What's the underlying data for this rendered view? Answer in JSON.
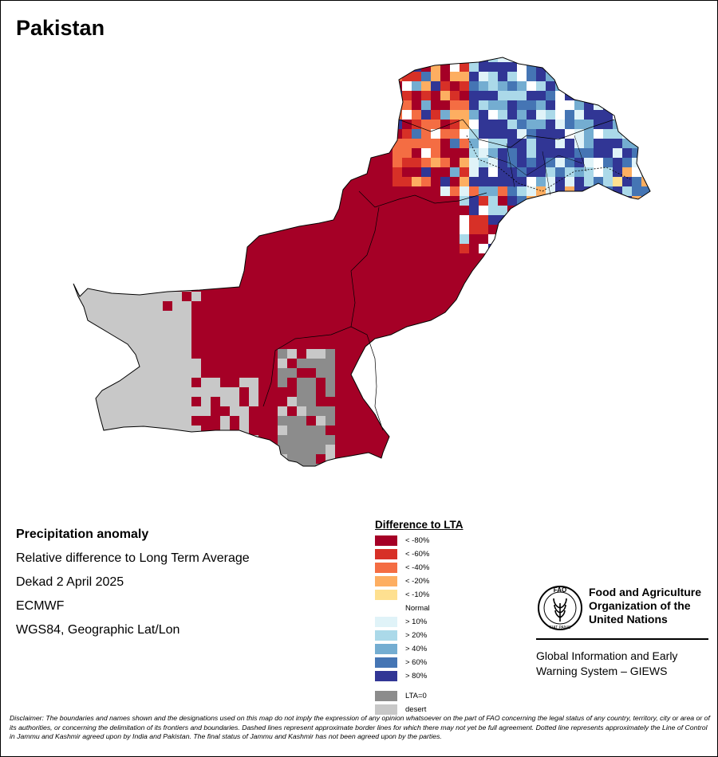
{
  "title": "Pakistan",
  "info": {
    "heading": "Precipitation anomaly",
    "line1": "Relative difference to Long Term Average",
    "line2": "Dekad 2 April 2025",
    "line3": "ECMWF",
    "line4": "WGS84, Geographic Lat/Lon"
  },
  "legend": {
    "title": "Difference to LTA",
    "classes": [
      {
        "label": "< -80%",
        "color": "#a50026"
      },
      {
        "label": "< -60%",
        "color": "#d73027"
      },
      {
        "label": "< -40%",
        "color": "#f46d43"
      },
      {
        "label": "< -20%",
        "color": "#fdae61"
      },
      {
        "label": "< -10%",
        "color": "#fee090"
      },
      {
        "label": "Normal",
        "color": "#ffffff"
      },
      {
        "label": "> 10%",
        "color": "#e0f3f8"
      },
      {
        "label": "> 20%",
        "color": "#abd9e9"
      },
      {
        "label": "> 40%",
        "color": "#74add1"
      },
      {
        "label": "> 60%",
        "color": "#4575b4"
      },
      {
        "label": "> 80%",
        "color": "#313695"
      }
    ],
    "extra": [
      {
        "label": "LTA=0",
        "color": "#8c8c8c"
      },
      {
        "label": "desert",
        "color": "#c8c8c8"
      }
    ]
  },
  "organization": {
    "name_line1": "Food and Agriculture",
    "name_line2": "Organization of the",
    "name_line3": "United Nations",
    "logo_letters": "FAO",
    "logo_motto": "FIAT PANIS",
    "system_line1": "Global Information and Early",
    "system_line2": "Warning System – GIEWS"
  },
  "disclaimer": "Disclaimer: The boundaries and names shown and the designations used on this map do not imply the expression of any opinion whatsoever on the part of FAO concerning the legal status of any country, territory, city or area or of its authorities, or concerning the delimitation of its frontiers and boundaries. Dashed lines represent approximate border lines for which there may not yet be full agreement. Dotted line represents approximately the Line of Control in Jammu and Kashmir agreed upon by India and Pakistan. The final status of Jammu and Kashmir has not been agreed upon by the parties."
}
